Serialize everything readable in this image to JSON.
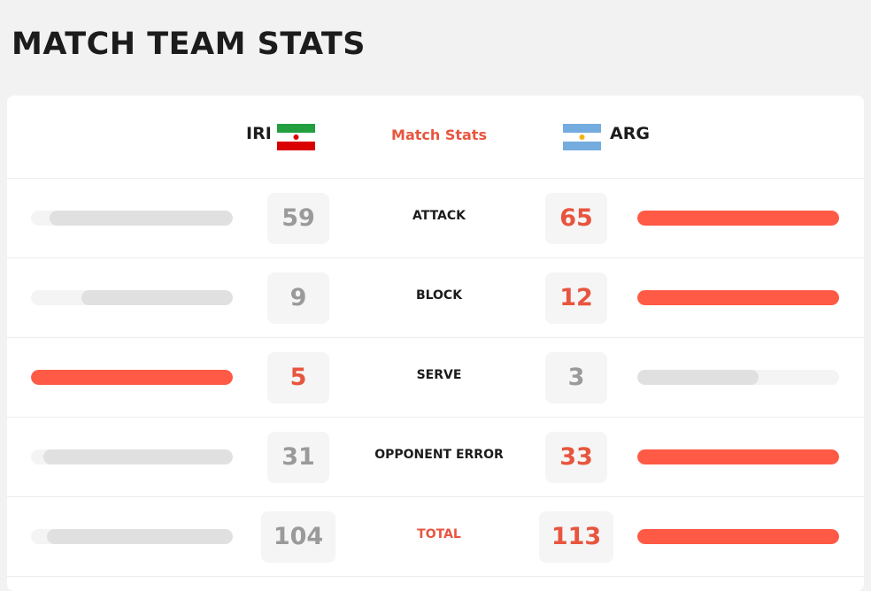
{
  "header": {
    "title": "MATCH TEAM STATS"
  },
  "table": {
    "home": "IRI",
    "center": "Match Stats",
    "away": "ARG",
    "rows": [
      {
        "label": "ATTACK",
        "home": 59,
        "away": 65
      },
      {
        "label": "BLOCK",
        "home": 9,
        "away": 12
      },
      {
        "label": "SERVE",
        "home": 5,
        "away": 3
      },
      {
        "label": "OPPONENT ERROR",
        "home": 31,
        "away": 33
      },
      {
        "label": "TOTAL",
        "home": 104,
        "away": 113
      }
    ]
  }
}
